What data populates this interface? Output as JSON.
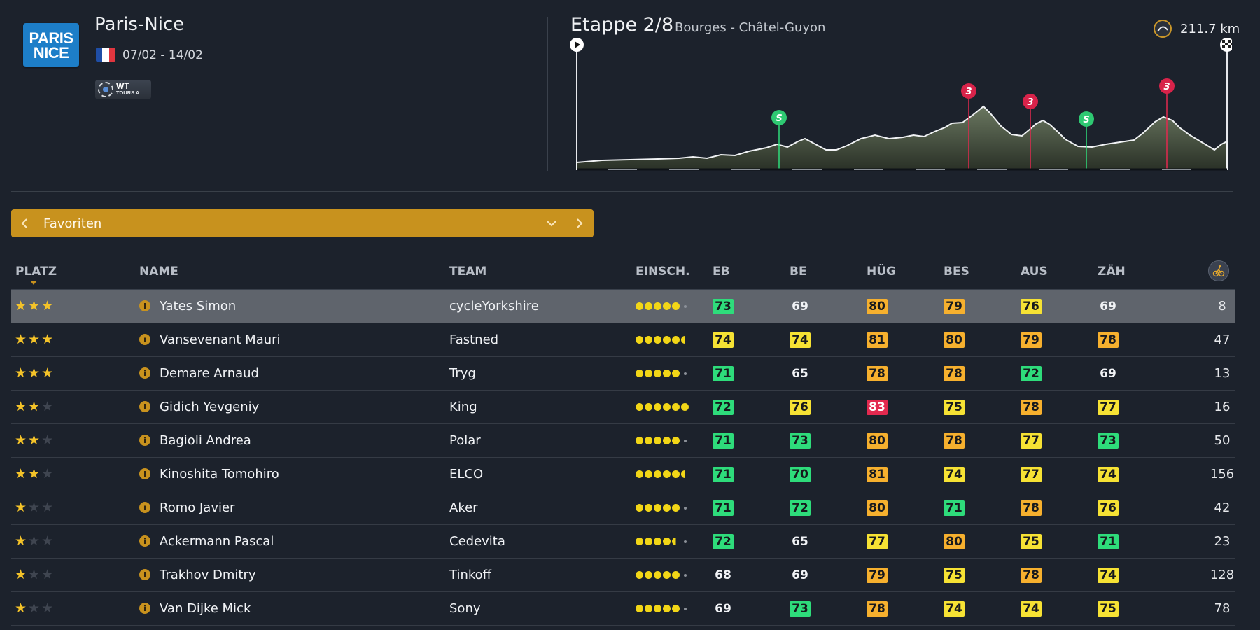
{
  "race": {
    "logo_line1": "PARIS",
    "logo_line2": "NICE",
    "name": "Paris-Nice",
    "country_flag_colors": [
      "#1f4ea6",
      "#ffffff",
      "#e1363f"
    ],
    "dates": "07/02 - 14/02",
    "badge_title": "WT",
    "badge_subtitle": "TOURS A"
  },
  "stage": {
    "title": "Etappe 2/8",
    "route": "Bourges - Châtel-Guyon",
    "distance": "211.7 km",
    "markers": [
      {
        "type": "sprint",
        "label": "S"
      },
      {
        "type": "climb",
        "label": "3"
      },
      {
        "type": "climb",
        "label": "3"
      },
      {
        "type": "sprint",
        "label": "S"
      },
      {
        "type": "climb",
        "label": "3"
      }
    ]
  },
  "selector": {
    "label": "Favoriten"
  },
  "table": {
    "headers": {
      "platz": "PLATZ",
      "name": "NAME",
      "team": "TEAM",
      "einsch": "EINSCH.",
      "eb": "EB",
      "be": "BE",
      "hug": "HÜG",
      "bes": "BES",
      "aus": "AUS",
      "zah": "ZÄH"
    },
    "rows": [
      {
        "stars": 3,
        "name": "Yates Simon",
        "team": "cycleYorkshire",
        "form": 5,
        "half": 0,
        "eb": {
          "v": "73",
          "c": "green"
        },
        "be": {
          "v": "69",
          "c": ""
        },
        "hug": {
          "v": "80",
          "c": "orange"
        },
        "bes": {
          "v": "79",
          "c": "orange"
        },
        "aus": {
          "v": "76",
          "c": "yellow"
        },
        "zah": {
          "v": "69",
          "c": ""
        },
        "rank": "8",
        "selected": true
      },
      {
        "stars": 3,
        "name": "Vansevenant Mauri",
        "team": "Fastned",
        "form": 5,
        "half": 1,
        "eb": {
          "v": "74",
          "c": "yellow"
        },
        "be": {
          "v": "74",
          "c": "yellow"
        },
        "hug": {
          "v": "81",
          "c": "orange"
        },
        "bes": {
          "v": "80",
          "c": "orange"
        },
        "aus": {
          "v": "79",
          "c": "orange"
        },
        "zah": {
          "v": "78",
          "c": "orange"
        },
        "rank": "47"
      },
      {
        "stars": 3,
        "name": "Demare Arnaud",
        "team": "Tryg",
        "form": 5,
        "half": 0,
        "eb": {
          "v": "71",
          "c": "green"
        },
        "be": {
          "v": "65",
          "c": ""
        },
        "hug": {
          "v": "78",
          "c": "orange"
        },
        "bes": {
          "v": "78",
          "c": "orange"
        },
        "aus": {
          "v": "72",
          "c": "green"
        },
        "zah": {
          "v": "69",
          "c": ""
        },
        "rank": "13"
      },
      {
        "stars": 2,
        "name": "Gidich Yevgeniy",
        "team": "King",
        "form": 6,
        "half": 0,
        "eb": {
          "v": "72",
          "c": "green"
        },
        "be": {
          "v": "76",
          "c": "yellow"
        },
        "hug": {
          "v": "83",
          "c": "red"
        },
        "bes": {
          "v": "75",
          "c": "yellow"
        },
        "aus": {
          "v": "78",
          "c": "orange"
        },
        "zah": {
          "v": "77",
          "c": "yellow"
        },
        "rank": "16"
      },
      {
        "stars": 2,
        "name": "Bagioli Andrea",
        "team": "Polar",
        "form": 5,
        "half": 0,
        "eb": {
          "v": "71",
          "c": "green"
        },
        "be": {
          "v": "73",
          "c": "green"
        },
        "hug": {
          "v": "80",
          "c": "orange"
        },
        "bes": {
          "v": "78",
          "c": "orange"
        },
        "aus": {
          "v": "77",
          "c": "yellow"
        },
        "zah": {
          "v": "73",
          "c": "green"
        },
        "rank": "50"
      },
      {
        "stars": 2,
        "name": "Kinoshita Tomohiro",
        "team": "ELCO",
        "form": 5,
        "half": 1,
        "eb": {
          "v": "71",
          "c": "green"
        },
        "be": {
          "v": "70",
          "c": "green"
        },
        "hug": {
          "v": "81",
          "c": "orange"
        },
        "bes": {
          "v": "74",
          "c": "yellow"
        },
        "aus": {
          "v": "77",
          "c": "yellow"
        },
        "zah": {
          "v": "74",
          "c": "yellow"
        },
        "rank": "156"
      },
      {
        "stars": 1,
        "name": "Romo Javier",
        "team": "Aker",
        "form": 5,
        "half": 0,
        "eb": {
          "v": "71",
          "c": "green"
        },
        "be": {
          "v": "72",
          "c": "green"
        },
        "hug": {
          "v": "80",
          "c": "orange"
        },
        "bes": {
          "v": "71",
          "c": "green"
        },
        "aus": {
          "v": "78",
          "c": "orange"
        },
        "zah": {
          "v": "76",
          "c": "yellow"
        },
        "rank": "42"
      },
      {
        "stars": 1,
        "name": "Ackermann Pascal",
        "team": "Cedevita",
        "form": 4,
        "half": 1,
        "eb": {
          "v": "72",
          "c": "green"
        },
        "be": {
          "v": "65",
          "c": ""
        },
        "hug": {
          "v": "77",
          "c": "yellow"
        },
        "bes": {
          "v": "80",
          "c": "orange"
        },
        "aus": {
          "v": "75",
          "c": "yellow"
        },
        "zah": {
          "v": "71",
          "c": "green"
        },
        "rank": "23"
      },
      {
        "stars": 1,
        "name": "Trakhov Dmitry",
        "team": "Tinkoff",
        "form": 5,
        "half": 0,
        "eb": {
          "v": "68",
          "c": ""
        },
        "be": {
          "v": "69",
          "c": ""
        },
        "hug": {
          "v": "79",
          "c": "orange"
        },
        "bes": {
          "v": "75",
          "c": "yellow"
        },
        "aus": {
          "v": "78",
          "c": "orange"
        },
        "zah": {
          "v": "74",
          "c": "yellow"
        },
        "rank": "128"
      },
      {
        "stars": 1,
        "name": "Van Dijke Mick",
        "team": "Sony",
        "form": 5,
        "half": 0,
        "eb": {
          "v": "69",
          "c": ""
        },
        "be": {
          "v": "73",
          "c": "green"
        },
        "hug": {
          "v": "78",
          "c": "orange"
        },
        "bes": {
          "v": "74",
          "c": "yellow"
        },
        "aus": {
          "v": "74",
          "c": "yellow"
        },
        "zah": {
          "v": "75",
          "c": "yellow"
        },
        "rank": "78"
      }
    ]
  }
}
